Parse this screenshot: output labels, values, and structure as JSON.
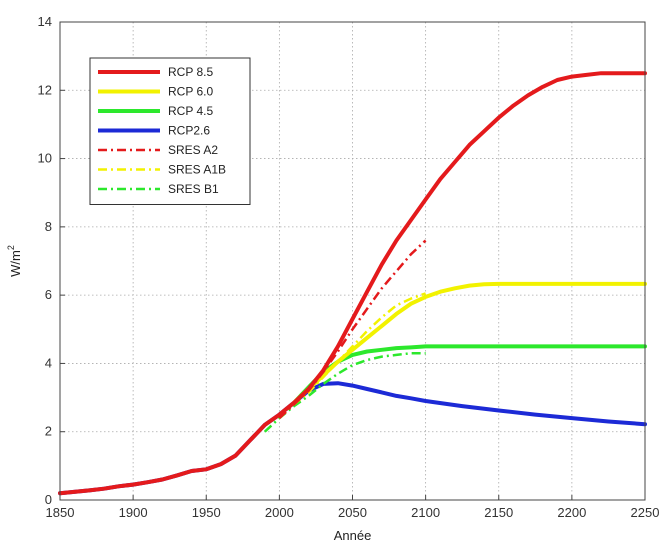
{
  "chart_data": {
    "type": "line",
    "xlabel": "Année",
    "ylabel": {
      "base": "W/m",
      "sup": "2"
    },
    "xlim": [
      1850,
      2250
    ],
    "ylim": [
      0,
      14
    ],
    "xticks": [
      1850,
      1900,
      1950,
      2000,
      2050,
      2100,
      2150,
      2200,
      2250
    ],
    "yticks": [
      0,
      2,
      4,
      6,
      8,
      10,
      12,
      14
    ],
    "grid": "dotted",
    "legend_position": "top-left",
    "series": [
      {
        "name": "RCP 8.5",
        "color": "#e41a1c",
        "style": "solid",
        "points": [
          [
            1850,
            0.2
          ],
          [
            1870,
            0.28
          ],
          [
            1880,
            0.33
          ],
          [
            1890,
            0.4
          ],
          [
            1900,
            0.45
          ],
          [
            1910,
            0.52
          ],
          [
            1920,
            0.6
          ],
          [
            1930,
            0.72
          ],
          [
            1940,
            0.85
          ],
          [
            1950,
            0.9
          ],
          [
            1960,
            1.05
          ],
          [
            1970,
            1.3
          ],
          [
            1980,
            1.75
          ],
          [
            1990,
            2.2
          ],
          [
            2000,
            2.5
          ],
          [
            2010,
            2.85
          ],
          [
            2020,
            3.25
          ],
          [
            2030,
            3.8
          ],
          [
            2040,
            4.5
          ],
          [
            2050,
            5.3
          ],
          [
            2060,
            6.1
          ],
          [
            2070,
            6.9
          ],
          [
            2080,
            7.6
          ],
          [
            2090,
            8.2
          ],
          [
            2100,
            8.8
          ],
          [
            2110,
            9.4
          ],
          [
            2120,
            9.9
          ],
          [
            2130,
            10.4
          ],
          [
            2140,
            10.8
          ],
          [
            2150,
            11.2
          ],
          [
            2160,
            11.55
          ],
          [
            2170,
            11.85
          ],
          [
            2180,
            12.1
          ],
          [
            2190,
            12.3
          ],
          [
            2200,
            12.4
          ],
          [
            2210,
            12.45
          ],
          [
            2220,
            12.5
          ],
          [
            2250,
            12.5
          ]
        ]
      },
      {
        "name": "RCP 6.0",
        "color": "#f2f200",
        "style": "solid",
        "points": [
          [
            2010,
            2.85
          ],
          [
            2020,
            3.25
          ],
          [
            2030,
            3.65
          ],
          [
            2040,
            4.05
          ],
          [
            2050,
            4.4
          ],
          [
            2060,
            4.75
          ],
          [
            2070,
            5.1
          ],
          [
            2080,
            5.45
          ],
          [
            2090,
            5.75
          ],
          [
            2100,
            5.95
          ],
          [
            2110,
            6.1
          ],
          [
            2120,
            6.2
          ],
          [
            2130,
            6.28
          ],
          [
            2140,
            6.32
          ],
          [
            2150,
            6.33
          ],
          [
            2250,
            6.33
          ]
        ]
      },
      {
        "name": "RCP 4.5",
        "color": "#2ce82c",
        "style": "solid",
        "points": [
          [
            2010,
            2.85
          ],
          [
            2020,
            3.3
          ],
          [
            2030,
            3.75
          ],
          [
            2040,
            4.05
          ],
          [
            2050,
            4.25
          ],
          [
            2060,
            4.35
          ],
          [
            2070,
            4.4
          ],
          [
            2080,
            4.45
          ],
          [
            2090,
            4.47
          ],
          [
            2100,
            4.5
          ],
          [
            2150,
            4.5
          ],
          [
            2250,
            4.5
          ]
        ]
      },
      {
        "name": "RCP2.6",
        "color": "#1c2ad6",
        "style": "solid",
        "points": [
          [
            1850,
            0.2
          ],
          [
            1870,
            0.28
          ],
          [
            1880,
            0.33
          ],
          [
            1890,
            0.4
          ],
          [
            1900,
            0.45
          ],
          [
            1910,
            0.52
          ],
          [
            1920,
            0.6
          ],
          [
            1930,
            0.72
          ],
          [
            1940,
            0.85
          ],
          [
            1950,
            0.9
          ],
          [
            1960,
            1.05
          ],
          [
            1970,
            1.3
          ],
          [
            1980,
            1.75
          ],
          [
            1990,
            2.2
          ],
          [
            2000,
            2.5
          ],
          [
            2010,
            2.85
          ],
          [
            2020,
            3.2
          ],
          [
            2030,
            3.4
          ],
          [
            2040,
            3.42
          ],
          [
            2050,
            3.35
          ],
          [
            2060,
            3.25
          ],
          [
            2070,
            3.15
          ],
          [
            2080,
            3.05
          ],
          [
            2090,
            2.98
          ],
          [
            2100,
            2.9
          ],
          [
            2125,
            2.75
          ],
          [
            2150,
            2.62
          ],
          [
            2175,
            2.5
          ],
          [
            2200,
            2.4
          ],
          [
            2225,
            2.3
          ],
          [
            2250,
            2.22
          ]
        ]
      },
      {
        "name": "SRES A2",
        "color": "#e41a1c",
        "style": "dashdot",
        "points": [
          [
            2000,
            2.4
          ],
          [
            2010,
            2.8
          ],
          [
            2020,
            3.2
          ],
          [
            2030,
            3.75
          ],
          [
            2040,
            4.35
          ],
          [
            2050,
            5.0
          ],
          [
            2060,
            5.6
          ],
          [
            2070,
            6.2
          ],
          [
            2080,
            6.7
          ],
          [
            2090,
            7.2
          ],
          [
            2100,
            7.6
          ]
        ]
      },
      {
        "name": "SRES A1B",
        "color": "#f2f200",
        "style": "dashdot",
        "points": [
          [
            2000,
            2.4
          ],
          [
            2010,
            2.8
          ],
          [
            2020,
            3.15
          ],
          [
            2030,
            3.6
          ],
          [
            2040,
            4.05
          ],
          [
            2050,
            4.5
          ],
          [
            2060,
            4.95
          ],
          [
            2070,
            5.35
          ],
          [
            2080,
            5.7
          ],
          [
            2090,
            5.9
          ],
          [
            2100,
            6.05
          ]
        ]
      },
      {
        "name": "SRES B1",
        "color": "#2ce82c",
        "style": "dashdot",
        "points": [
          [
            1990,
            2.0
          ],
          [
            2000,
            2.4
          ],
          [
            2010,
            2.75
          ],
          [
            2020,
            3.05
          ],
          [
            2030,
            3.4
          ],
          [
            2040,
            3.7
          ],
          [
            2050,
            3.95
          ],
          [
            2060,
            4.1
          ],
          [
            2070,
            4.2
          ],
          [
            2080,
            4.25
          ],
          [
            2090,
            4.3
          ],
          [
            2100,
            4.3
          ]
        ]
      }
    ]
  }
}
